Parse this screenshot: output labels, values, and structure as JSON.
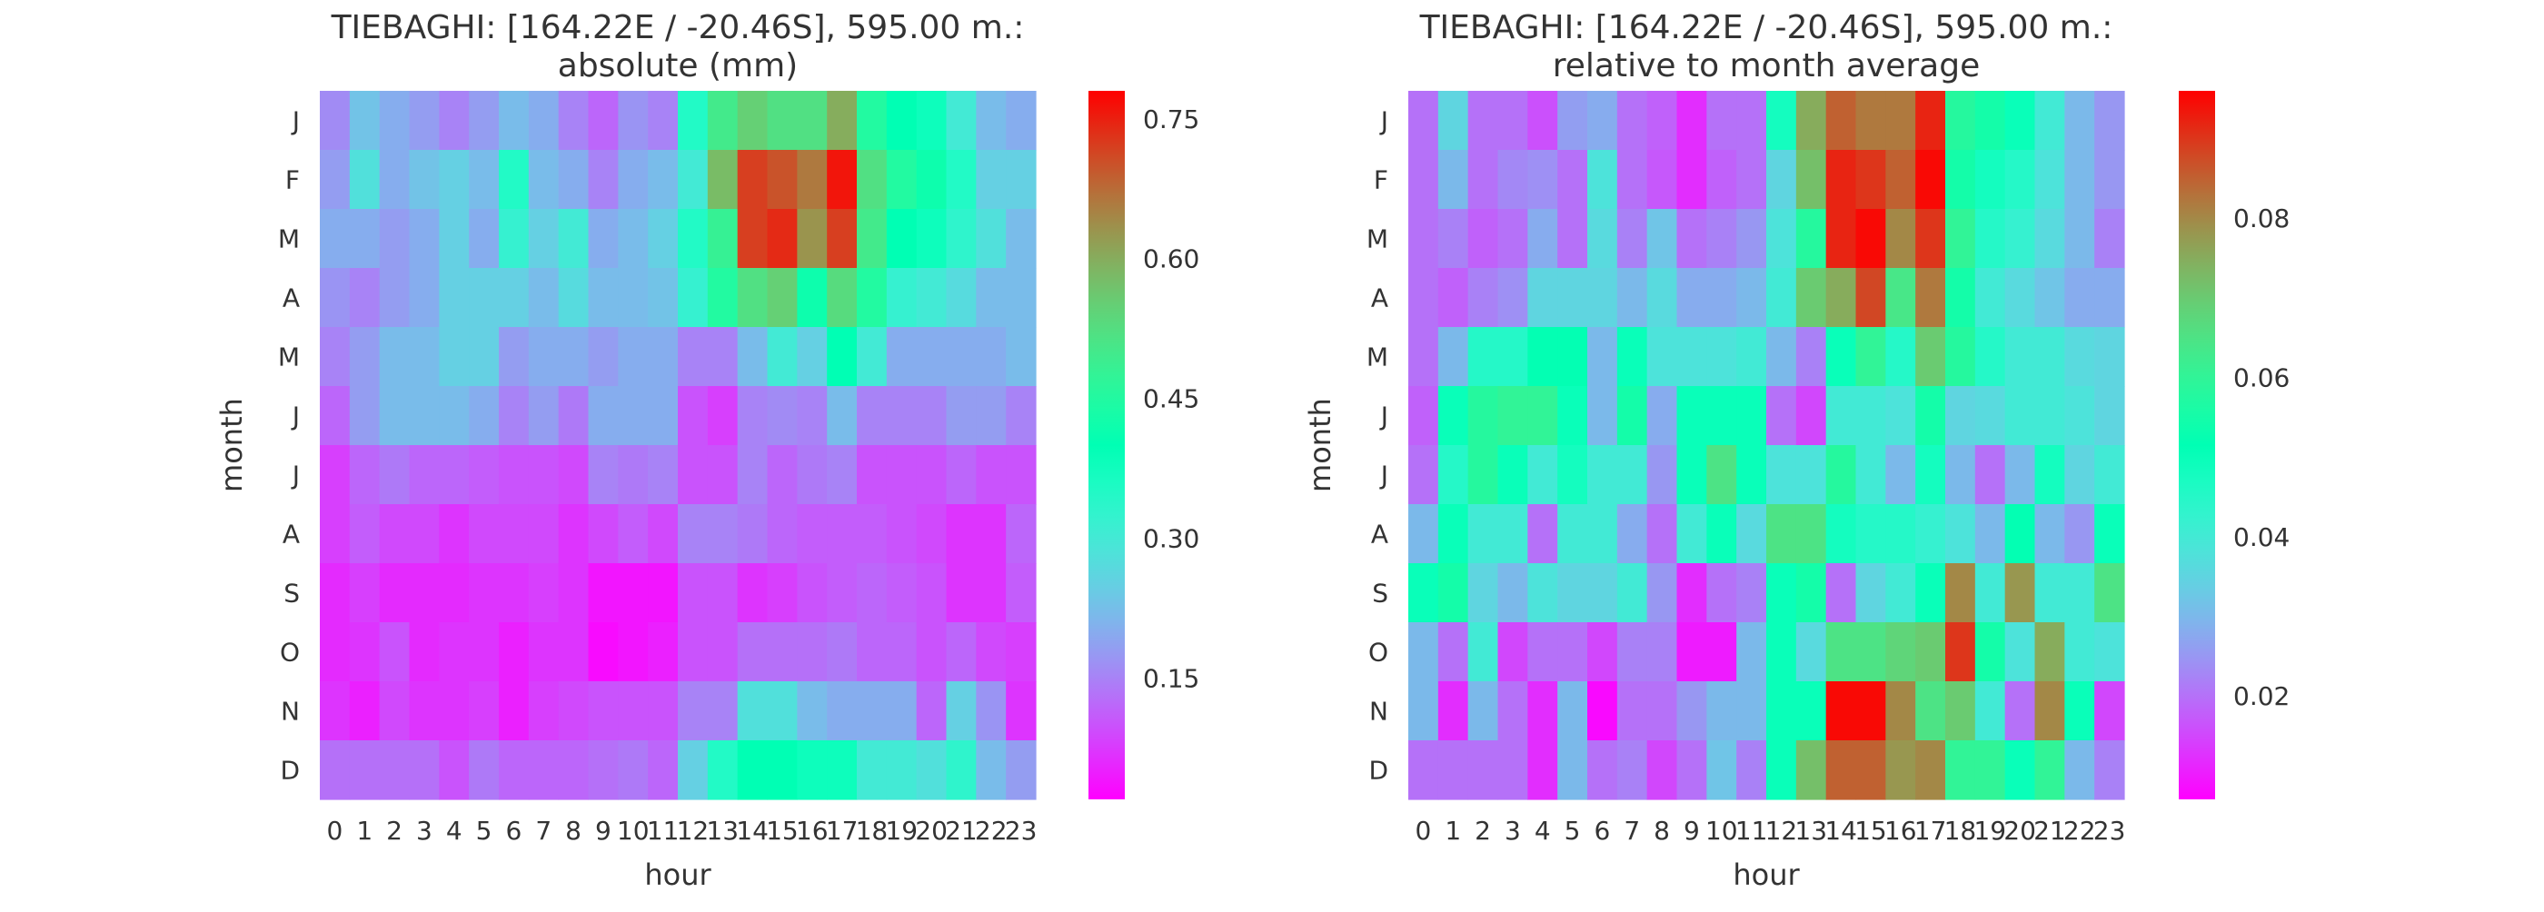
{
  "chart_data": [
    {
      "type": "heatmap",
      "title": "TIEBAGHI: [164.22E / -20.46S], 595.00 m.:\nabsolute (mm)",
      "xlabel": "hour",
      "ylabel": "month",
      "x": [
        "0",
        "1",
        "2",
        "3",
        "4",
        "5",
        "6",
        "7",
        "8",
        "9",
        "10",
        "11",
        "12",
        "13",
        "14",
        "15",
        "16",
        "17",
        "18",
        "19",
        "20",
        "21",
        "22",
        "23"
      ],
      "y": [
        "J",
        "F",
        "M",
        "A",
        "M",
        "J",
        "J",
        "A",
        "S",
        "O",
        "N",
        "D"
      ],
      "values": [
        [
          0.16,
          0.23,
          0.2,
          0.18,
          0.15,
          0.18,
          0.22,
          0.2,
          0.15,
          0.12,
          0.17,
          0.15,
          0.35,
          0.5,
          0.55,
          0.52,
          0.52,
          0.6,
          0.45,
          0.4,
          0.38,
          0.3,
          0.22,
          0.2
        ],
        [
          0.18,
          0.28,
          0.2,
          0.23,
          0.25,
          0.22,
          0.35,
          0.22,
          0.2,
          0.15,
          0.2,
          0.22,
          0.3,
          0.58,
          0.72,
          0.7,
          0.66,
          0.76,
          0.52,
          0.45,
          0.42,
          0.35,
          0.25,
          0.25
        ],
        [
          0.2,
          0.2,
          0.18,
          0.2,
          0.25,
          0.2,
          0.32,
          0.25,
          0.3,
          0.2,
          0.22,
          0.25,
          0.35,
          0.48,
          0.72,
          0.74,
          0.63,
          0.72,
          0.5,
          0.4,
          0.38,
          0.33,
          0.28,
          0.22
        ],
        [
          0.17,
          0.15,
          0.18,
          0.2,
          0.25,
          0.25,
          0.25,
          0.22,
          0.27,
          0.22,
          0.22,
          0.23,
          0.32,
          0.45,
          0.52,
          0.55,
          0.42,
          0.53,
          0.45,
          0.32,
          0.3,
          0.27,
          0.22,
          0.22
        ],
        [
          0.15,
          0.18,
          0.22,
          0.22,
          0.25,
          0.25,
          0.18,
          0.2,
          0.2,
          0.18,
          0.2,
          0.2,
          0.15,
          0.15,
          0.22,
          0.3,
          0.25,
          0.4,
          0.3,
          0.2,
          0.2,
          0.2,
          0.2,
          0.22
        ],
        [
          0.12,
          0.18,
          0.22,
          0.22,
          0.22,
          0.2,
          0.15,
          0.18,
          0.14,
          0.2,
          0.2,
          0.2,
          0.1,
          0.08,
          0.15,
          0.16,
          0.15,
          0.22,
          0.15,
          0.15,
          0.15,
          0.18,
          0.18,
          0.15
        ],
        [
          0.08,
          0.12,
          0.14,
          0.12,
          0.12,
          0.11,
          0.1,
          0.1,
          0.09,
          0.15,
          0.14,
          0.15,
          0.1,
          0.1,
          0.15,
          0.12,
          0.14,
          0.15,
          0.1,
          0.1,
          0.1,
          0.12,
          0.1,
          0.1
        ],
        [
          0.08,
          0.11,
          0.09,
          0.09,
          0.07,
          0.09,
          0.09,
          0.09,
          0.07,
          0.09,
          0.11,
          0.09,
          0.15,
          0.15,
          0.14,
          0.12,
          0.11,
          0.11,
          0.11,
          0.1,
          0.09,
          0.07,
          0.07,
          0.12
        ],
        [
          0.06,
          0.08,
          0.06,
          0.06,
          0.06,
          0.07,
          0.07,
          0.08,
          0.07,
          0.04,
          0.04,
          0.04,
          0.1,
          0.1,
          0.07,
          0.08,
          0.1,
          0.11,
          0.12,
          0.11,
          0.1,
          0.07,
          0.07,
          0.11
        ],
        [
          0.06,
          0.07,
          0.1,
          0.06,
          0.07,
          0.07,
          0.05,
          0.07,
          0.07,
          0.03,
          0.04,
          0.05,
          0.1,
          0.1,
          0.13,
          0.13,
          0.13,
          0.14,
          0.12,
          0.12,
          0.1,
          0.12,
          0.09,
          0.08
        ],
        [
          0.07,
          0.05,
          0.09,
          0.07,
          0.07,
          0.08,
          0.05,
          0.08,
          0.09,
          0.1,
          0.1,
          0.1,
          0.15,
          0.15,
          0.28,
          0.28,
          0.22,
          0.2,
          0.2,
          0.2,
          0.12,
          0.25,
          0.17,
          0.07
        ],
        [
          0.13,
          0.13,
          0.13,
          0.13,
          0.1,
          0.14,
          0.12,
          0.12,
          0.12,
          0.13,
          0.14,
          0.12,
          0.25,
          0.35,
          0.4,
          0.4,
          0.38,
          0.38,
          0.3,
          0.3,
          0.28,
          0.33,
          0.22,
          0.18
        ]
      ],
      "vmin": 0.02,
      "vmax": 0.78,
      "colorbar_ticks": [
        0.15,
        0.3,
        0.45,
        0.6,
        0.75
      ],
      "colorbar_ticklabels": [
        "0.15",
        "0.30",
        "0.45",
        "0.60",
        "0.75"
      ],
      "colormap": "rainbow",
      "grid": false
    },
    {
      "type": "heatmap",
      "title": "TIEBAGHI: [164.22E / -20.46S], 595.00 m.:\nrelative to month average",
      "xlabel": "hour",
      "ylabel": "month",
      "x": [
        "0",
        "1",
        "2",
        "3",
        "4",
        "5",
        "6",
        "7",
        "8",
        "9",
        "10",
        "11",
        "12",
        "13",
        "14",
        "15",
        "16",
        "17",
        "18",
        "19",
        "20",
        "21",
        "22",
        "23"
      ],
      "y": [
        "J",
        "F",
        "M",
        "A",
        "M",
        "J",
        "J",
        "A",
        "S",
        "O",
        "N",
        "D"
      ],
      "values": [
        [
          0.02,
          0.035,
          0.02,
          0.02,
          0.016,
          0.026,
          0.028,
          0.02,
          0.018,
          0.012,
          0.02,
          0.02,
          0.048,
          0.075,
          0.085,
          0.082,
          0.082,
          0.092,
          0.058,
          0.055,
          0.05,
          0.04,
          0.03,
          0.025
        ],
        [
          0.02,
          0.03,
          0.02,
          0.023,
          0.024,
          0.02,
          0.038,
          0.02,
          0.017,
          0.012,
          0.018,
          0.02,
          0.035,
          0.072,
          0.092,
          0.09,
          0.085,
          0.095,
          0.055,
          0.048,
          0.045,
          0.038,
          0.03,
          0.025
        ],
        [
          0.02,
          0.022,
          0.018,
          0.02,
          0.028,
          0.02,
          0.036,
          0.022,
          0.032,
          0.02,
          0.022,
          0.025,
          0.038,
          0.058,
          0.092,
          0.095,
          0.08,
          0.09,
          0.06,
          0.045,
          0.042,
          0.036,
          0.03,
          0.022
        ],
        [
          0.02,
          0.018,
          0.022,
          0.024,
          0.035,
          0.035,
          0.035,
          0.03,
          0.036,
          0.028,
          0.028,
          0.03,
          0.04,
          0.07,
          0.075,
          0.088,
          0.064,
          0.082,
          0.055,
          0.04,
          0.036,
          0.032,
          0.028,
          0.028
        ],
        [
          0.02,
          0.03,
          0.045,
          0.045,
          0.052,
          0.052,
          0.03,
          0.05,
          0.038,
          0.038,
          0.038,
          0.04,
          0.03,
          0.022,
          0.05,
          0.06,
          0.045,
          0.07,
          0.058,
          0.045,
          0.04,
          0.04,
          0.036,
          0.035
        ],
        [
          0.018,
          0.05,
          0.058,
          0.06,
          0.06,
          0.05,
          0.03,
          0.055,
          0.028,
          0.05,
          0.05,
          0.05,
          0.02,
          0.015,
          0.04,
          0.04,
          0.038,
          0.055,
          0.035,
          0.036,
          0.04,
          0.04,
          0.038,
          0.035
        ],
        [
          0.02,
          0.045,
          0.058,
          0.05,
          0.04,
          0.048,
          0.04,
          0.04,
          0.025,
          0.05,
          0.065,
          0.05,
          0.038,
          0.038,
          0.058,
          0.04,
          0.03,
          0.048,
          0.03,
          0.02,
          0.03,
          0.048,
          0.035,
          0.04
        ],
        [
          0.03,
          0.05,
          0.04,
          0.04,
          0.02,
          0.04,
          0.04,
          0.028,
          0.02,
          0.04,
          0.05,
          0.036,
          0.065,
          0.065,
          0.048,
          0.045,
          0.045,
          0.042,
          0.038,
          0.03,
          0.052,
          0.03,
          0.025,
          0.05
        ],
        [
          0.05,
          0.055,
          0.035,
          0.03,
          0.038,
          0.035,
          0.035,
          0.04,
          0.025,
          0.012,
          0.02,
          0.022,
          0.05,
          0.055,
          0.02,
          0.035,
          0.04,
          0.05,
          0.08,
          0.04,
          0.078,
          0.04,
          0.04,
          0.065
        ],
        [
          0.03,
          0.02,
          0.04,
          0.015,
          0.02,
          0.02,
          0.015,
          0.022,
          0.022,
          0.01,
          0.01,
          0.03,
          0.05,
          0.036,
          0.065,
          0.065,
          0.068,
          0.07,
          0.09,
          0.055,
          0.038,
          0.075,
          0.04,
          0.038
        ],
        [
          0.03,
          0.012,
          0.03,
          0.02,
          0.012,
          0.03,
          0.008,
          0.02,
          0.02,
          0.025,
          0.03,
          0.03,
          0.05,
          0.05,
          0.095,
          0.095,
          0.08,
          0.065,
          0.07,
          0.04,
          0.02,
          0.08,
          0.05,
          0.015
        ],
        [
          0.02,
          0.02,
          0.02,
          0.02,
          0.012,
          0.03,
          0.02,
          0.022,
          0.015,
          0.02,
          0.032,
          0.022,
          0.05,
          0.072,
          0.085,
          0.085,
          0.078,
          0.08,
          0.06,
          0.06,
          0.05,
          0.06,
          0.03,
          0.022
        ]
      ],
      "vmin": 0.007,
      "vmax": 0.096,
      "colorbar_ticks": [
        0.02,
        0.04,
        0.06,
        0.08
      ],
      "colorbar_ticklabels": [
        "0.02",
        "0.04",
        "0.06",
        "0.08"
      ],
      "colormap": "rainbow",
      "grid": false
    }
  ]
}
